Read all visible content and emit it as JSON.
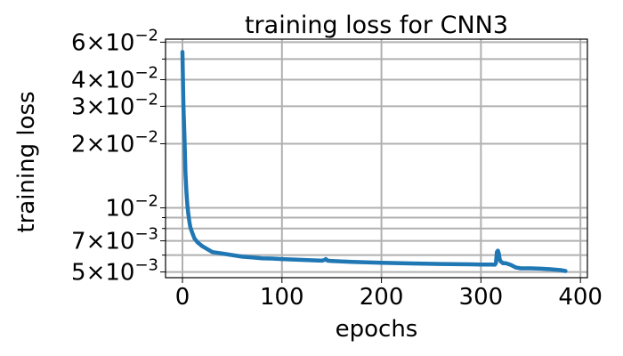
{
  "chart_data": {
    "type": "line",
    "title": "training loss for CNN3",
    "xlabel": "epochs",
    "ylabel": "training loss",
    "x_scale": "linear",
    "y_scale": "log",
    "xlim": [
      -17,
      407
    ],
    "ylim": [
      0.0047,
      0.062
    ],
    "grid": true,
    "colors": {
      "line": "#1f77b4",
      "grid": "#b0b0b0"
    },
    "x_ticks": [
      {
        "value": 0,
        "label": "0"
      },
      {
        "value": 100,
        "label": "100"
      },
      {
        "value": 200,
        "label": "200"
      },
      {
        "value": 300,
        "label": "300"
      },
      {
        "value": 400,
        "label": "400"
      }
    ],
    "y_ticks_labeled": [
      {
        "value": 0.005,
        "mant": "5",
        "exp": "−3"
      },
      {
        "value": 0.007,
        "mant": "7",
        "exp": "−3"
      },
      {
        "value": 0.01,
        "mant": "",
        "exp": "−2"
      },
      {
        "value": 0.02,
        "mant": "2",
        "exp": "−2"
      },
      {
        "value": 0.03,
        "mant": "3",
        "exp": "−2"
      },
      {
        "value": 0.04,
        "mant": "4",
        "exp": "−2"
      },
      {
        "value": 0.06,
        "mant": "6",
        "exp": "−2"
      }
    ],
    "y_ticks_minor": [
      0.006,
      0.008,
      0.009,
      0.05
    ],
    "series": [
      {
        "x": [
          0,
          1,
          2,
          3,
          4,
          5,
          6,
          7,
          8,
          10,
          12,
          15,
          20,
          25,
          30,
          40,
          50,
          60,
          70,
          80,
          90,
          100,
          120,
          140,
          143,
          144,
          145,
          146,
          150,
          170,
          200,
          230,
          260,
          290,
          300,
          310,
          314,
          315,
          316,
          317,
          318,
          319,
          320,
          321,
          322,
          325,
          330,
          335,
          340,
          350,
          360,
          370,
          380,
          385
        ],
        "y": [
          0.054,
          0.03,
          0.022,
          0.0145,
          0.0118,
          0.0102,
          0.0093,
          0.0086,
          0.0081,
          0.0076,
          0.0072,
          0.0069,
          0.0066,
          0.0064,
          0.0062,
          0.0061,
          0.006,
          0.0059,
          0.00585,
          0.0058,
          0.00578,
          0.00575,
          0.0057,
          0.00565,
          0.0057,
          0.00575,
          0.0057,
          0.00565,
          0.00563,
          0.00558,
          0.00552,
          0.00548,
          0.00545,
          0.00543,
          0.00542,
          0.00542,
          0.00541,
          0.0055,
          0.0062,
          0.0063,
          0.0061,
          0.0057,
          0.0056,
          0.00555,
          0.0055,
          0.0055,
          0.0054,
          0.00525,
          0.0052,
          0.0052,
          0.00518,
          0.00515,
          0.0051,
          0.00505
        ]
      }
    ]
  }
}
